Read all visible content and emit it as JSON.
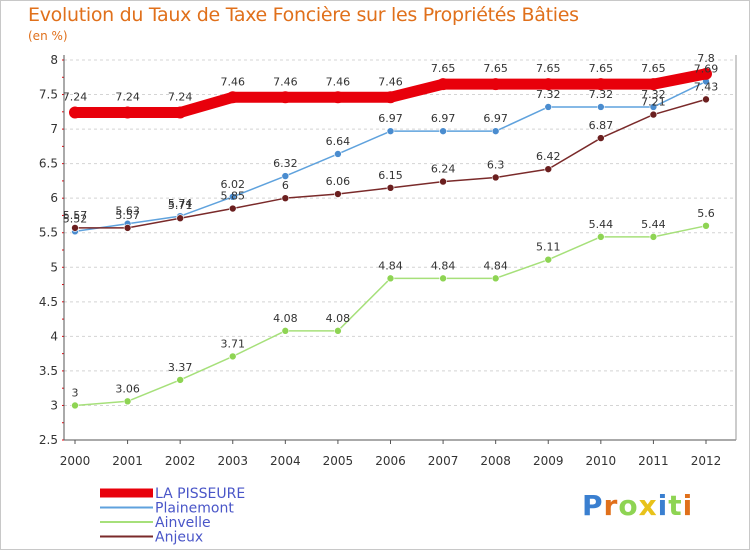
{
  "header": {
    "title": "Evolution du Taux de Taxe Foncière sur les Propriétés Bâties",
    "subtitle": "(en %)"
  },
  "logo": {
    "text": "Proxiti"
  },
  "chart_data": {
    "type": "line",
    "title": "Evolution du Taux de Taxe Foncière sur les Propriétés Bâties",
    "ylabel": "(en %)",
    "xlabel": "",
    "ylim": [
      2.5,
      8
    ],
    "yticks": [
      "2.5",
      "3",
      "3.5",
      "4",
      "4.5",
      "5",
      "5.5",
      "6",
      "6.5",
      "7",
      "7.5",
      "8"
    ],
    "categories": [
      "2000",
      "2001",
      "2002",
      "2003",
      "2004",
      "2005",
      "2006",
      "2007",
      "2008",
      "2009",
      "2010",
      "2011",
      "2012"
    ],
    "grid": "horizontal dashed",
    "legend_position": "bottom-left",
    "series": [
      {
        "name": "LA PISSEURE",
        "color": "#e8000b",
        "emphasis": "thick",
        "values": [
          7.24,
          7.24,
          7.24,
          7.46,
          7.46,
          7.46,
          7.46,
          7.65,
          7.65,
          7.65,
          7.65,
          7.65,
          7.8
        ],
        "labels": [
          "7.24",
          "7.24",
          "7.24",
          "7.46",
          "7.46",
          "7.46",
          "7.46",
          "7.65",
          "7.65",
          "7.65",
          "7.65",
          "7.65",
          "7.8"
        ]
      },
      {
        "name": "Plainemont",
        "color": "#5fa2dd",
        "marker": "#4a8ccf",
        "values": [
          5.52,
          5.63,
          5.74,
          6.02,
          6.32,
          6.64,
          6.97,
          6.97,
          6.97,
          7.32,
          7.32,
          7.32,
          7.69
        ],
        "labels": [
          "5.52",
          "5.63",
          "5.74",
          "6.02",
          "6.32",
          "6.64",
          "6.97",
          "6.97",
          "6.97",
          "7.32",
          "7.32",
          "7.32",
          "7.69"
        ]
      },
      {
        "name": "Ainvelle",
        "color": "#a6e07a",
        "marker": "#8ed453",
        "values": [
          3,
          3.06,
          3.37,
          3.71,
          4.08,
          4.08,
          4.84,
          4.84,
          4.84,
          5.11,
          5.44,
          5.44,
          5.6
        ],
        "labels": [
          "3",
          "3.06",
          "3.37",
          "3.71",
          "4.08",
          "4.08",
          "4.84",
          "4.84",
          "4.84",
          "5.11",
          "5.44",
          "5.44",
          "5.6"
        ]
      },
      {
        "name": "Anjeux",
        "color": "#7a2a2a",
        "marker": "#6b1f1f",
        "values": [
          5.57,
          5.57,
          5.71,
          5.85,
          6,
          6.06,
          6.15,
          6.24,
          6.3,
          6.42,
          6.87,
          7.21,
          7.43
        ],
        "labels": [
          "5.57",
          "5.57",
          "5.71",
          "5.85",
          "6",
          "6.06",
          "6.15",
          "6.24",
          "6.3",
          "6.42",
          "6.87",
          "7.21",
          "7.43"
        ]
      }
    ]
  }
}
